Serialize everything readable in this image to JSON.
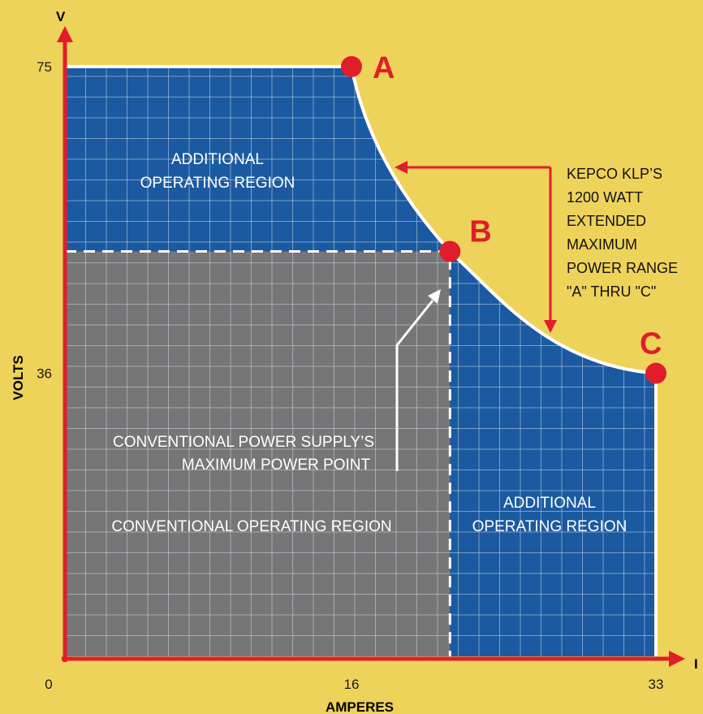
{
  "chart_data": {
    "type": "area",
    "x_axis_letter": "I",
    "y_axis_letter": "V",
    "xlabel": "AMPERES",
    "ylabel": "VOLTS",
    "x_ticks": [
      "0",
      "16",
      "33"
    ],
    "y_ticks": [
      "75",
      "36"
    ],
    "xlim": [
      0,
      33
    ],
    "ylim": [
      0,
      75
    ],
    "grid": true,
    "points": [
      {
        "label": "A",
        "x": 16,
        "y": 75
      },
      {
        "label": "B",
        "x": 21.5,
        "y": 51.5
      },
      {
        "label": "C",
        "x": 33,
        "y": 36
      }
    ],
    "conventional_limit": {
      "x": 21.5,
      "y": 51.5
    },
    "regions": {
      "upper": [
        "ADDITIONAL",
        "OPERATING REGION"
      ],
      "right": [
        "ADDITIONAL",
        "OPERATING REGION"
      ],
      "conventional": "CONVENTIONAL OPERATING REGION"
    },
    "annotations": {
      "max_power_point": [
        "CONVENTIONAL POWER SUPPLY’S",
        "MAXIMUM POWER POINT"
      ],
      "extended_range": [
        "KEPCO KLP’S",
        "1200 WATT",
        "EXTENDED",
        "MAXIMUM",
        "POWER  RANGE",
        "\"A\" THRU \"C\""
      ]
    },
    "colors": {
      "background": "#EED35A",
      "additional_region": "#1B5AA0",
      "conventional_region": "#767676",
      "axis": "#E01E2B",
      "curve": "#ffffff"
    }
  }
}
